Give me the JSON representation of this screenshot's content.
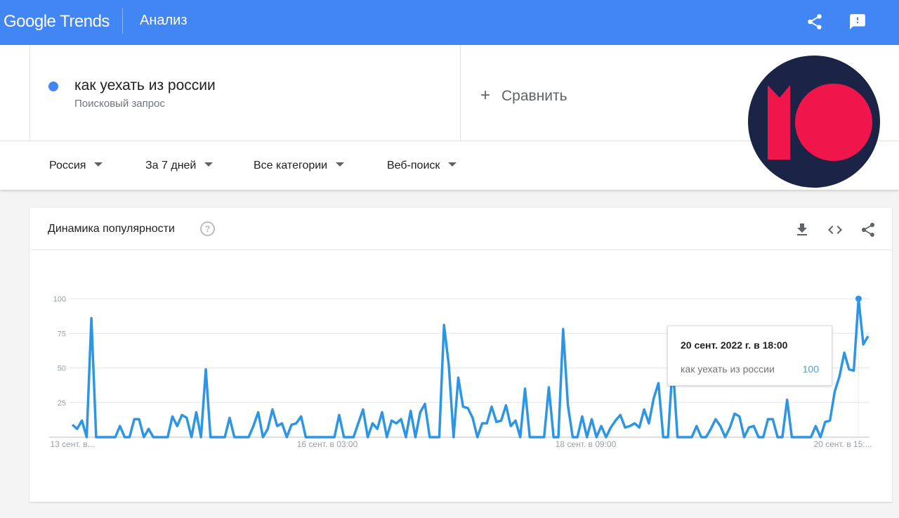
{
  "header": {
    "logo": "Google Trends",
    "title": "Анализ",
    "icons": [
      "share-icon",
      "feedback-icon"
    ],
    "color": "#4285f4"
  },
  "search": {
    "term": "как уехать из россии",
    "term_type": "Поисковый запрос",
    "term_color": "#4285f4",
    "compare_label": "Сравнить"
  },
  "filters": [
    {
      "label": "Россия"
    },
    {
      "label": "За 7 дней"
    },
    {
      "label": "Все категории"
    },
    {
      "label": "Веб-поиск"
    }
  ],
  "card": {
    "title": "Динамика популярности",
    "help": "?",
    "icons": [
      "download-icon",
      "embed-icon",
      "share-icon"
    ]
  },
  "tooltip": {
    "date": "20 сент. 2022 г. в 18:00",
    "term": "как уехать из россии",
    "value": "100"
  },
  "chart_data": {
    "type": "line",
    "title": "",
    "xlabel": "",
    "ylabel": "",
    "ylim": [
      0,
      100
    ],
    "yticks": [
      "100",
      "75",
      "50",
      "25"
    ],
    "ytick_values": [
      100,
      75,
      50,
      25
    ],
    "xticks": [
      "13 сент. в...",
      "16 сент. в 03:00",
      "18 сент. в 09:00",
      "20 сент. в 15:..."
    ],
    "xtick_indices": [
      0,
      66,
      120,
      174
    ],
    "grid": true,
    "color": "#2d96e4",
    "highlight_index": 165,
    "values": [
      9,
      6,
      12,
      0,
      86,
      0,
      0,
      0,
      0,
      0,
      8,
      0,
      0,
      13,
      13,
      0,
      6,
      0,
      0,
      0,
      0,
      15,
      8,
      16,
      14,
      0,
      18,
      0,
      49,
      0,
      0,
      0,
      0,
      14,
      0,
      0,
      0,
      0,
      8,
      18,
      0,
      6,
      20,
      8,
      10,
      0,
      9,
      10,
      15,
      0,
      0,
      0,
      0,
      0,
      0,
      0,
      16,
      0,
      0,
      0,
      10,
      20,
      0,
      10,
      6,
      18,
      0,
      12,
      10,
      13,
      0,
      19,
      0,
      18,
      24,
      0,
      0,
      0,
      81,
      52,
      0,
      43,
      22,
      21,
      14,
      0,
      10,
      10,
      22,
      11,
      12,
      23,
      8,
      12,
      0,
      35,
      0,
      0,
      0,
      0,
      36,
      0,
      0,
      78,
      23,
      0,
      0,
      15,
      0,
      13,
      0,
      8,
      0,
      7,
      12,
      16,
      7,
      8,
      10,
      7,
      20,
      10,
      28,
      39,
      0,
      0,
      53,
      0,
      0,
      0,
      0,
      8,
      0,
      0,
      6,
      13,
      8,
      0,
      7,
      17,
      15,
      0,
      7,
      8,
      0,
      0,
      13,
      13,
      0,
      0,
      27,
      0,
      0,
      0,
      0,
      0,
      8,
      0,
      11,
      12,
      33,
      44,
      61,
      49,
      48,
      100,
      67,
      73
    ]
  }
}
